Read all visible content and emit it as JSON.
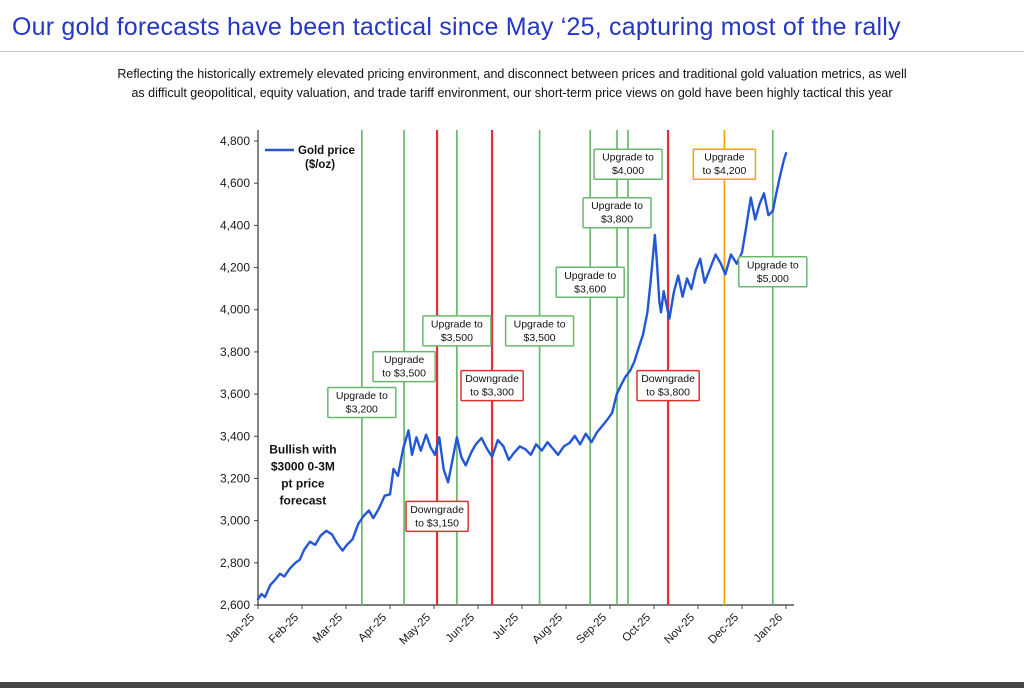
{
  "header": {
    "title": "Our gold forecasts have been tactical since May ‘25, capturing most of the rally",
    "subtitle_line1": "Reflecting the historically extremely elevated pricing environment, and disconnect between prices and traditional gold valuation metrics, as well",
    "subtitle_line2": "as difficult geopolitical, equity valuation, and trade tariff environment, our short-term price views on gold have been highly tactical this year"
  },
  "chart_data": {
    "type": "line",
    "title": "",
    "xlabel": "",
    "ylabel": "",
    "legend": {
      "position": "top-left",
      "line1": "Gold price",
      "line2": "($/oz)"
    },
    "x_axis_note": "x expressed as months since Jan-25 (0) through Jan-26 (12)",
    "x_tick_labels": [
      "Jan-25",
      "Feb-25",
      "Mar-25",
      "Apr-25",
      "May-25",
      "Jun-25",
      "Jul-25",
      "Aug-25",
      "Sep-25",
      "Oct-25",
      "Nov-25",
      "Dec-25",
      "Jan-26"
    ],
    "ylim": [
      2600,
      4800
    ],
    "y_tick_step": 200,
    "y_tick_labels": [
      "2,600",
      "2,800",
      "3,000",
      "3,200",
      "3,400",
      "3,600",
      "3,800",
      "4,000",
      "4,200",
      "4,400",
      "4,600",
      "4,800"
    ],
    "grid": false,
    "annotation": {
      "lines": [
        "Bullish with",
        "$3000 0-3M",
        "pt price",
        "forecast"
      ],
      "x_month": 1.02,
      "y_price": 3200
    },
    "colors": {
      "line": "#2257d5",
      "upgrade": "#6ab86f",
      "downgrade": "#e03030",
      "upgrade_orange": "#f0a500",
      "title_blue": "#2336c7"
    },
    "series": [
      {
        "name": "Gold price ($/oz)",
        "color": "#2257d5",
        "points": [
          [
            0,
            2628
          ],
          [
            0.08,
            2652
          ],
          [
            0.16,
            2638
          ],
          [
            0.28,
            2695
          ],
          [
            0.4,
            2722
          ],
          [
            0.5,
            2748
          ],
          [
            0.6,
            2735
          ],
          [
            0.72,
            2772
          ],
          [
            0.85,
            2800
          ],
          [
            0.95,
            2815
          ],
          [
            1.05,
            2862
          ],
          [
            1.18,
            2900
          ],
          [
            1.3,
            2885
          ],
          [
            1.42,
            2928
          ],
          [
            1.55,
            2952
          ],
          [
            1.68,
            2935
          ],
          [
            1.8,
            2892
          ],
          [
            1.92,
            2858
          ],
          [
            2.02,
            2885
          ],
          [
            2.15,
            2912
          ],
          [
            2.28,
            2985
          ],
          [
            2.4,
            3022
          ],
          [
            2.52,
            3048
          ],
          [
            2.62,
            3012
          ],
          [
            2.75,
            3058
          ],
          [
            2.88,
            3118
          ],
          [
            3,
            3125
          ],
          [
            3.08,
            3245
          ],
          [
            3.18,
            3212
          ],
          [
            3.3,
            3342
          ],
          [
            3.42,
            3428
          ],
          [
            3.5,
            3312
          ],
          [
            3.6,
            3395
          ],
          [
            3.7,
            3332
          ],
          [
            3.82,
            3408
          ],
          [
            3.92,
            3348
          ],
          [
            4.02,
            3312
          ],
          [
            4.12,
            3395
          ],
          [
            4.22,
            3242
          ],
          [
            4.32,
            3182
          ],
          [
            4.42,
            3288
          ],
          [
            4.52,
            3395
          ],
          [
            4.62,
            3302
          ],
          [
            4.72,
            3262
          ],
          [
            4.85,
            3325
          ],
          [
            4.95,
            3362
          ],
          [
            5.08,
            3392
          ],
          [
            5.2,
            3342
          ],
          [
            5.32,
            3302
          ],
          [
            5.45,
            3382
          ],
          [
            5.58,
            3352
          ],
          [
            5.7,
            3288
          ],
          [
            5.82,
            3322
          ],
          [
            5.95,
            3352
          ],
          [
            6.08,
            3338
          ],
          [
            6.2,
            3312
          ],
          [
            6.32,
            3362
          ],
          [
            6.45,
            3332
          ],
          [
            6.58,
            3372
          ],
          [
            6.7,
            3342
          ],
          [
            6.82,
            3312
          ],
          [
            6.95,
            3352
          ],
          [
            7.08,
            3368
          ],
          [
            7.2,
            3402
          ],
          [
            7.32,
            3362
          ],
          [
            7.45,
            3412
          ],
          [
            7.58,
            3372
          ],
          [
            7.7,
            3418
          ],
          [
            7.82,
            3448
          ],
          [
            7.95,
            3482
          ],
          [
            8.05,
            3512
          ],
          [
            8.15,
            3598
          ],
          [
            8.25,
            3642
          ],
          [
            8.35,
            3682
          ],
          [
            8.45,
            3708
          ],
          [
            8.55,
            3752
          ],
          [
            8.65,
            3818
          ],
          [
            8.75,
            3882
          ],
          [
            8.85,
            3988
          ],
          [
            8.92,
            4128
          ],
          [
            8.98,
            4262
          ],
          [
            9.02,
            4355
          ],
          [
            9.07,
            4212
          ],
          [
            9.12,
            4042
          ],
          [
            9.16,
            3988
          ],
          [
            9.22,
            4088
          ],
          [
            9.28,
            4028
          ],
          [
            9.35,
            3958
          ],
          [
            9.45,
            4082
          ],
          [
            9.55,
            4162
          ],
          [
            9.65,
            4062
          ],
          [
            9.75,
            4148
          ],
          [
            9.85,
            4098
          ],
          [
            9.95,
            4188
          ],
          [
            10.05,
            4242
          ],
          [
            10.15,
            4128
          ],
          [
            10.28,
            4198
          ],
          [
            10.4,
            4262
          ],
          [
            10.52,
            4218
          ],
          [
            10.62,
            4168
          ],
          [
            10.75,
            4262
          ],
          [
            10.88,
            4218
          ],
          [
            11,
            4272
          ],
          [
            11.1,
            4398
          ],
          [
            11.2,
            4532
          ],
          [
            11.3,
            4428
          ],
          [
            11.4,
            4502
          ],
          [
            11.5,
            4552
          ],
          [
            11.6,
            4448
          ],
          [
            11.7,
            4468
          ],
          [
            11.78,
            4552
          ],
          [
            11.88,
            4648
          ],
          [
            11.95,
            4708
          ],
          [
            12,
            4742
          ]
        ]
      }
    ],
    "events": [
      {
        "line1": "Upgrade to",
        "line2": "$3,200",
        "type": "upgrade",
        "x_month": 2.36,
        "label_y_price": 3560
      },
      {
        "line1": "Upgrade",
        "line2": "to $3,500",
        "type": "upgrade",
        "x_month": 3.32,
        "label_y_price": 3730
      },
      {
        "line1": "Downgrade",
        "line2": "to $3,150",
        "type": "downgrade",
        "x_month": 4.07,
        "label_y_price": 3020
      },
      {
        "line1": "Upgrade to",
        "line2": "$3,500",
        "type": "upgrade",
        "x_month": 4.52,
        "label_y_price": 3900
      },
      {
        "line1": "Downgrade",
        "line2": "to $3,300",
        "type": "downgrade",
        "x_month": 5.32,
        "label_y_price": 3640
      },
      {
        "line1": "Upgrade to",
        "line2": "$3,500",
        "type": "upgrade",
        "x_month": 6.4,
        "label_y_price": 3900
      },
      {
        "line1": "Upgrade to",
        "line2": "$3,600",
        "type": "upgrade",
        "x_month": 7.55,
        "label_y_price": 4130
      },
      {
        "line1": "Upgrade to",
        "line2": "$3,800",
        "type": "upgrade",
        "x_month": 8.16,
        "label_y_price": 4460
      },
      {
        "line1": "Upgrade to",
        "line2": "$4,000",
        "type": "upgrade",
        "x_month": 8.41,
        "label_y_price": 4690
      },
      {
        "line1": "Downgrade",
        "line2": "to $3,800",
        "type": "downgrade",
        "x_month": 9.32,
        "label_y_price": 3640
      },
      {
        "line1": "Upgrade",
        "line2": "to $4,200",
        "type": "upgrade_orange",
        "x_month": 10.6,
        "label_y_price": 4690
      },
      {
        "line1": "Upgrade to",
        "line2": "$5,000",
        "type": "upgrade",
        "x_month": 11.7,
        "label_y_price": 4180
      }
    ]
  }
}
